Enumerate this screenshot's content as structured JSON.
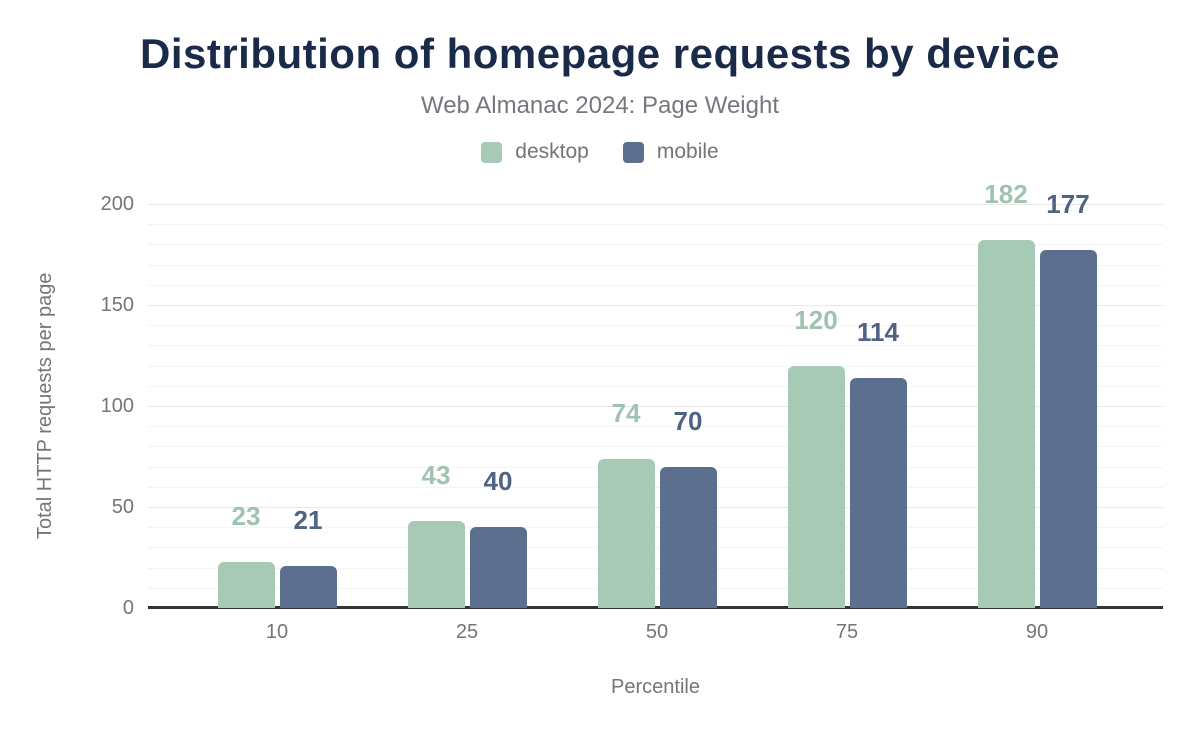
{
  "header": {
    "title": "Distribution of homepage requests by device",
    "subtitle": "Web Almanac 2024: Page Weight"
  },
  "chart_data": {
    "type": "bar",
    "title": "Distribution of homepage requests by device",
    "subtitle": "Web Almanac 2024: Page Weight",
    "categories": [
      "10",
      "25",
      "50",
      "75",
      "90"
    ],
    "series": [
      {
        "name": "desktop",
        "color": "#a7cab6",
        "label_color": "#9fc3b0",
        "values": [
          23,
          43,
          74,
          120,
          182
        ]
      },
      {
        "name": "mobile",
        "color": "#5d6f8e",
        "label_color": "#4f6383",
        "values": [
          21,
          40,
          70,
          114,
          177
        ]
      }
    ],
    "xlabel": "Percentile",
    "ylabel": "Total HTTP requests per page",
    "ylim": [
      0,
      200
    ],
    "yticks": [
      0,
      50,
      100,
      150,
      200
    ],
    "minor_grid_step": 10,
    "grid": true,
    "legend_position": "top",
    "data_labels": true
  },
  "style": {
    "title_color": "#1a2b49",
    "subtitle_color": "#76767e",
    "axis_text_color": "#757575",
    "legend_text_color": "#757575",
    "axis_line_color": "#333333",
    "grid_major_color": "#e7e7e7",
    "grid_minor_color": "#f4f4f4",
    "background_color": "#ffffff"
  }
}
